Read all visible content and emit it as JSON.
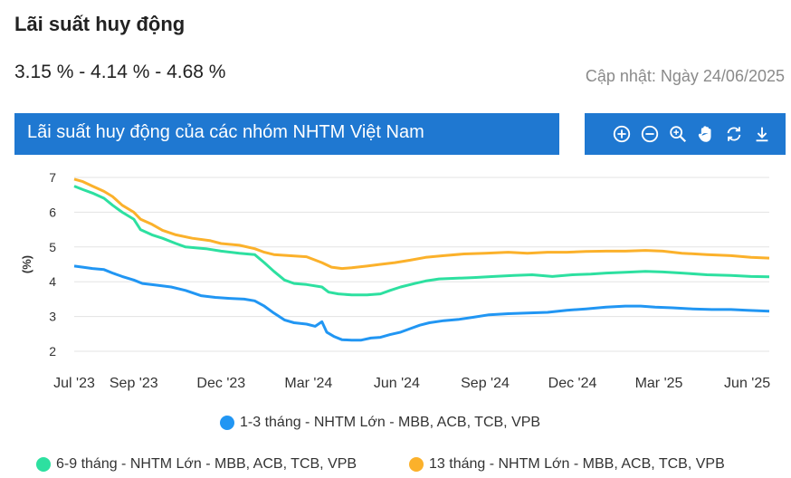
{
  "page": {
    "title": "Lãi suất huy động",
    "values": "3.15 % - 4.14 % - 4.68 %",
    "updated": "Cập nhật: Ngày 24/06/2025",
    "chart_header": "Lãi suất huy động của các nhóm NHTM Việt Nam"
  },
  "toolbar": [
    {
      "icon": "zoom-in-icon"
    },
    {
      "icon": "zoom-out-icon"
    },
    {
      "icon": "magnifier-icon"
    },
    {
      "icon": "pan-hand-icon"
    },
    {
      "icon": "reset-icon"
    },
    {
      "icon": "download-icon"
    }
  ],
  "chart_data": {
    "type": "line",
    "ylabel": "(%)",
    "ylim": [
      2,
      7
    ],
    "yticks": [
      2,
      3,
      4,
      5,
      6,
      7
    ],
    "xlim": [
      "2023-07-01",
      "2025-06-24"
    ],
    "xticks": [
      {
        "label": "Jul '23",
        "date": "2023-07-01"
      },
      {
        "label": "Sep '23",
        "date": "2023-09-01"
      },
      {
        "label": "Dec '23",
        "date": "2023-12-01"
      },
      {
        "label": "Mar '24",
        "date": "2024-03-01"
      },
      {
        "label": "Jun '24",
        "date": "2024-06-01"
      },
      {
        "label": "Sep '24",
        "date": "2024-09-01"
      },
      {
        "label": "Dec '24",
        "date": "2024-12-01"
      },
      {
        "label": "Mar '25",
        "date": "2025-03-01"
      },
      {
        "label": "Jun '25",
        "date": "2025-06-01"
      }
    ],
    "grid": true,
    "legend_position": "bottom",
    "series": [
      {
        "name": "1-3 tháng - NHTM Lớn - MBB, ACB, TCB, VPB",
        "color": "#2196f3",
        "points": [
          [
            "2023-07-01",
            4.45
          ],
          [
            "2023-07-10",
            4.42
          ],
          [
            "2023-07-20",
            4.38
          ],
          [
            "2023-08-01",
            4.35
          ],
          [
            "2023-08-10",
            4.25
          ],
          [
            "2023-08-20",
            4.15
          ],
          [
            "2023-09-01",
            4.05
          ],
          [
            "2023-09-10",
            3.95
          ],
          [
            "2023-09-25",
            3.9
          ],
          [
            "2023-10-10",
            3.85
          ],
          [
            "2023-10-25",
            3.75
          ],
          [
            "2023-11-10",
            3.6
          ],
          [
            "2023-11-25",
            3.55
          ],
          [
            "2023-12-10",
            3.52
          ],
          [
            "2023-12-25",
            3.5
          ],
          [
            "2024-01-05",
            3.45
          ],
          [
            "2024-01-15",
            3.3
          ],
          [
            "2024-01-25",
            3.1
          ],
          [
            "2024-02-05",
            2.9
          ],
          [
            "2024-02-15",
            2.82
          ],
          [
            "2024-02-28",
            2.78
          ],
          [
            "2024-03-08",
            2.72
          ],
          [
            "2024-03-15",
            2.85
          ],
          [
            "2024-03-20",
            2.55
          ],
          [
            "2024-03-28",
            2.42
          ],
          [
            "2024-04-05",
            2.33
          ],
          [
            "2024-04-15",
            2.32
          ],
          [
            "2024-04-25",
            2.32
          ],
          [
            "2024-05-05",
            2.38
          ],
          [
            "2024-05-15",
            2.4
          ],
          [
            "2024-05-25",
            2.48
          ],
          [
            "2024-06-05",
            2.55
          ],
          [
            "2024-06-15",
            2.65
          ],
          [
            "2024-06-25",
            2.75
          ],
          [
            "2024-07-05",
            2.82
          ],
          [
            "2024-07-20",
            2.88
          ],
          [
            "2024-08-05",
            2.92
          ],
          [
            "2024-08-20",
            2.98
          ],
          [
            "2024-09-05",
            3.05
          ],
          [
            "2024-09-25",
            3.08
          ],
          [
            "2024-10-15",
            3.1
          ],
          [
            "2024-11-05",
            3.12
          ],
          [
            "2024-11-25",
            3.18
          ],
          [
            "2024-12-15",
            3.22
          ],
          [
            "2025-01-05",
            3.27
          ],
          [
            "2025-01-25",
            3.3
          ],
          [
            "2025-02-10",
            3.3
          ],
          [
            "2025-02-25",
            3.27
          ],
          [
            "2025-03-15",
            3.25
          ],
          [
            "2025-04-05",
            3.22
          ],
          [
            "2025-04-25",
            3.2
          ],
          [
            "2025-05-15",
            3.2
          ],
          [
            "2025-06-01",
            3.18
          ],
          [
            "2025-06-24",
            3.15
          ]
        ]
      },
      {
        "name": "6-9 tháng - NHTM Lớn - MBB, ACB, TCB, VPB",
        "color": "#2de0a0",
        "points": [
          [
            "2023-07-01",
            6.75
          ],
          [
            "2023-07-10",
            6.65
          ],
          [
            "2023-07-20",
            6.55
          ],
          [
            "2023-08-01",
            6.4
          ],
          [
            "2023-08-10",
            6.2
          ],
          [
            "2023-08-20",
            6.0
          ],
          [
            "2023-09-01",
            5.8
          ],
          [
            "2023-09-08",
            5.5
          ],
          [
            "2023-09-20",
            5.35
          ],
          [
            "2023-10-01",
            5.25
          ],
          [
            "2023-10-15",
            5.1
          ],
          [
            "2023-10-25",
            5.0
          ],
          [
            "2023-11-15",
            4.95
          ],
          [
            "2023-12-01",
            4.88
          ],
          [
            "2023-12-20",
            4.82
          ],
          [
            "2024-01-05",
            4.78
          ],
          [
            "2024-01-15",
            4.55
          ],
          [
            "2024-01-25",
            4.3
          ],
          [
            "2024-02-05",
            4.05
          ],
          [
            "2024-02-15",
            3.95
          ],
          [
            "2024-02-28",
            3.92
          ],
          [
            "2024-03-15",
            3.85
          ],
          [
            "2024-03-22",
            3.7
          ],
          [
            "2024-04-01",
            3.65
          ],
          [
            "2024-04-15",
            3.62
          ],
          [
            "2024-05-01",
            3.62
          ],
          [
            "2024-05-15",
            3.65
          ],
          [
            "2024-05-25",
            3.75
          ],
          [
            "2024-06-05",
            3.85
          ],
          [
            "2024-06-20",
            3.95
          ],
          [
            "2024-07-01",
            4.02
          ],
          [
            "2024-07-15",
            4.08
          ],
          [
            "2024-08-01",
            4.1
          ],
          [
            "2024-08-20",
            4.12
          ],
          [
            "2024-09-10",
            4.15
          ],
          [
            "2024-10-01",
            4.18
          ],
          [
            "2024-10-20",
            4.2
          ],
          [
            "2024-11-10",
            4.15
          ],
          [
            "2024-12-01",
            4.2
          ],
          [
            "2024-12-20",
            4.22
          ],
          [
            "2025-01-05",
            4.25
          ],
          [
            "2025-01-25",
            4.27
          ],
          [
            "2025-02-15",
            4.3
          ],
          [
            "2025-03-05",
            4.28
          ],
          [
            "2025-03-25",
            4.25
          ],
          [
            "2025-04-20",
            4.2
          ],
          [
            "2025-05-15",
            4.18
          ],
          [
            "2025-06-05",
            4.15
          ],
          [
            "2025-06-24",
            4.14
          ]
        ]
      },
      {
        "name": "13 tháng - NHTM Lớn - MBB, ACB, TCB, VPB",
        "color": "#fbb12b",
        "points": [
          [
            "2023-07-01",
            6.95
          ],
          [
            "2023-07-10",
            6.88
          ],
          [
            "2023-07-20",
            6.75
          ],
          [
            "2023-08-01",
            6.6
          ],
          [
            "2023-08-10",
            6.45
          ],
          [
            "2023-08-20",
            6.2
          ],
          [
            "2023-09-01",
            6.0
          ],
          [
            "2023-09-08",
            5.8
          ],
          [
            "2023-09-20",
            5.65
          ],
          [
            "2023-10-01",
            5.48
          ],
          [
            "2023-10-15",
            5.35
          ],
          [
            "2023-11-01",
            5.25
          ],
          [
            "2023-11-20",
            5.18
          ],
          [
            "2023-12-01",
            5.1
          ],
          [
            "2023-12-20",
            5.05
          ],
          [
            "2024-01-05",
            4.95
          ],
          [
            "2024-01-15",
            4.85
          ],
          [
            "2024-01-25",
            4.78
          ],
          [
            "2024-02-10",
            4.75
          ],
          [
            "2024-02-28",
            4.72
          ],
          [
            "2024-03-15",
            4.55
          ],
          [
            "2024-03-25",
            4.42
          ],
          [
            "2024-04-05",
            4.38
          ],
          [
            "2024-04-15",
            4.4
          ],
          [
            "2024-05-01",
            4.45
          ],
          [
            "2024-05-15",
            4.5
          ],
          [
            "2024-05-30",
            4.55
          ],
          [
            "2024-06-15",
            4.62
          ],
          [
            "2024-07-01",
            4.7
          ],
          [
            "2024-07-20",
            4.75
          ],
          [
            "2024-08-10",
            4.8
          ],
          [
            "2024-09-01",
            4.82
          ],
          [
            "2024-09-25",
            4.85
          ],
          [
            "2024-10-15",
            4.82
          ],
          [
            "2024-11-05",
            4.85
          ],
          [
            "2024-11-25",
            4.85
          ],
          [
            "2024-12-15",
            4.87
          ],
          [
            "2025-01-05",
            4.88
          ],
          [
            "2025-01-25",
            4.88
          ],
          [
            "2025-02-15",
            4.9
          ],
          [
            "2025-03-05",
            4.88
          ],
          [
            "2025-03-25",
            4.82
          ],
          [
            "2025-04-20",
            4.78
          ],
          [
            "2025-05-15",
            4.75
          ],
          [
            "2025-06-05",
            4.7
          ],
          [
            "2025-06-24",
            4.68
          ]
        ]
      }
    ]
  }
}
